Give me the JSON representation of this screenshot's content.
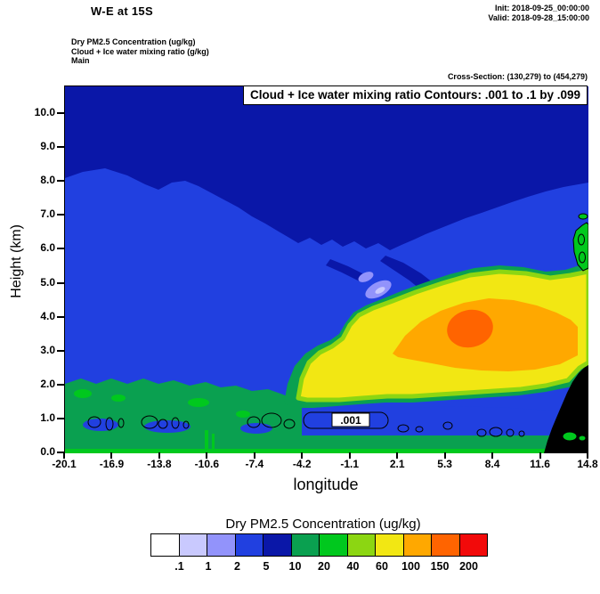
{
  "header": {
    "title": "W-E at 15S",
    "init": "Init: 2018-09-25_00:00:00",
    "valid": "Valid: 2018-09-28_15:00:00",
    "field1": "Dry PM2.5 Concentration   (ug/kg)",
    "field2": "Cloud + Ice water mixing ratio  (g/kg)",
    "field3": "Main",
    "cross_section": "Cross-Section: (130,279) to (454,279)"
  },
  "plot": {
    "contour_note": "Cloud + Ice water mixing ratio Contours: .001 to .1 by .099",
    "inline_label": ".001",
    "xlabel": "longitude",
    "ylabel": "Height (km)",
    "x_ticks": [
      "-20.1",
      "-16.9",
      "-13.8",
      "-10.6",
      "-7.4",
      "-4.2",
      "-1.1",
      "2.1",
      "5.3",
      "8.4",
      "11.6",
      "14.8"
    ],
    "y_ticks": [
      "10.0",
      "9.0",
      "8.0",
      "7.0",
      "6.0",
      "5.0",
      "4.0",
      "3.0",
      "2.0",
      "1.0",
      "0.0"
    ]
  },
  "colorbar": {
    "title": "Dry PM2.5 Concentration  (ug/kg)",
    "labels": [
      ".1",
      "1",
      "2",
      "5",
      "10",
      "20",
      "40",
      "60",
      "100",
      "150",
      "200"
    ],
    "colors": [
      "#ffffff",
      "#c9c9fe",
      "#9293fb",
      "#2140e0",
      "#0a17a8",
      "#0aa050",
      "#00c81e",
      "#8cd612",
      "#f2e713",
      "#ffa800",
      "#ff6400",
      "#f20a0a"
    ]
  },
  "chart_data": {
    "type": "heatmap",
    "subtype": "filled_contour_vertical_cross_section",
    "title": "W-E at 15S",
    "xlabel": "longitude",
    "ylabel": "Height (km)",
    "x_range": [
      -20.1,
      14.8
    ],
    "y_range": [
      0.0,
      10.8
    ],
    "x_ticks": [
      -20.1,
      -16.9,
      -13.8,
      -10.6,
      -7.4,
      -4.2,
      -1.1,
      2.1,
      5.3,
      8.4,
      11.6,
      14.8
    ],
    "y_ticks": [
      0.0,
      1.0,
      2.0,
      3.0,
      4.0,
      5.0,
      6.0,
      7.0,
      8.0,
      9.0,
      10.0
    ],
    "init_time": "2018-09-25_00:00:00",
    "valid_time": "2018-09-28_15:00:00",
    "cross_section_grid_points": {
      "from": [
        130,
        279
      ],
      "to": [
        454,
        279
      ]
    },
    "fill_field": {
      "name": "Dry PM2.5 Concentration",
      "units": "ug/kg",
      "levels": [
        0.1,
        1,
        2,
        5,
        10,
        20,
        40,
        60,
        100,
        150,
        200
      ],
      "colors": [
        "#ffffff",
        "#c9c9fe",
        "#9293fb",
        "#2140e0",
        "#0a17a8",
        "#0aa050",
        "#00c81e",
        "#8cd612",
        "#f2e713",
        "#ffa800",
        "#ff6400",
        "#f20a0a"
      ]
    },
    "overlay_field": {
      "name": "Cloud + Ice water mixing ratio",
      "units": "g/kg",
      "contour_min": 0.001,
      "contour_max": 0.1,
      "contour_interval": 0.099,
      "labeled_contour": 0.001
    },
    "features": [
      {
        "name": "elevated_smoke_plume",
        "lon_range": [
          -6,
          14.8
        ],
        "height_km": [
          2.2,
          5.5
        ],
        "value_ugkg": "60-150"
      },
      {
        "name": "plume_maximum",
        "lon_range": [
          3,
          9
        ],
        "height_km": [
          3.0,
          4.5
        ],
        "value_ugkg": "150-200"
      },
      {
        "name": "boundary_layer_aerosol_west",
        "lon_range": [
          -20.1,
          -7
        ],
        "height_km": [
          0,
          2
        ],
        "value_ugkg": "10-40"
      },
      {
        "name": "free_troposphere_background",
        "height_km": [
          2,
          7
        ],
        "value_ugkg": "2-5"
      },
      {
        "name": "upper_troposphere_band",
        "height_km": [
          7,
          10.8
        ],
        "value_ugkg": "5-10"
      },
      {
        "name": "light_purple_patches",
        "lon_range": [
          -4,
          -1
        ],
        "height_km": [
          4.5,
          6
        ],
        "value_ugkg": "1-2"
      },
      {
        "name": "terrain_mask_black",
        "lon_range": [
          11.5,
          14.8
        ],
        "height_km": [
          0,
          2.6
        ]
      },
      {
        "name": "cloud_contours_0.001",
        "lon_range": [
          -19,
          10
        ],
        "height_km": [
          0.5,
          1.3
        ]
      },
      {
        "name": "cloud_blob_right_edge",
        "lon_range": [
          14.3,
          14.8
        ],
        "height_km": [
          5.4,
          6.5
        ],
        "value_ugkg": "20-40"
      }
    ]
  }
}
